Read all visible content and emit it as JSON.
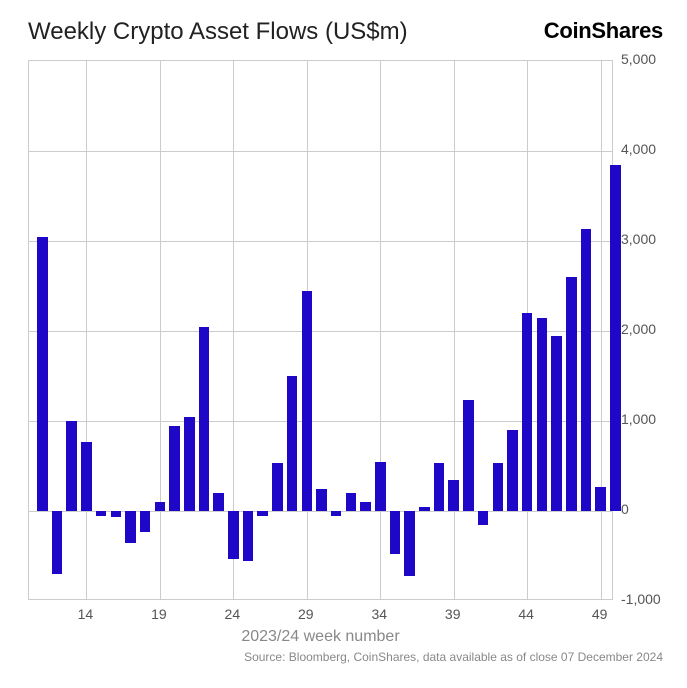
{
  "title": "Weekly Crypto Asset Flows (US$m)",
  "brand": "CoinShares",
  "xlabel": "2023/24 week number",
  "source": "Source: Bloomberg, CoinShares, data available as of close 07 December 2024",
  "chart": {
    "type": "bar",
    "bar_color": "#1f07c7",
    "grid_color": "#cccccc",
    "background_color": "#ffffff",
    "tick_label_color": "#555555",
    "xlabel_color": "#888888",
    "ylim": [
      -1000,
      5000
    ],
    "ytick_step": 1000,
    "yticks": [
      -1000,
      0,
      1000,
      2000,
      3000,
      4000,
      5000
    ],
    "ytick_labels": [
      "-1,000",
      "0",
      "1,000",
      "2,000",
      "3,000",
      "4,000",
      "5,000"
    ],
    "xticks": [
      14,
      19,
      24,
      29,
      34,
      39,
      44,
      49
    ],
    "xtick_labels": [
      "14",
      "19",
      "24",
      "29",
      "34",
      "39",
      "44",
      "49"
    ],
    "x_start": 11,
    "x_end": 49,
    "bar_width_ratio": 0.72,
    "title_fontsize": 24,
    "brand_fontsize": 22,
    "tick_fontsize": 14,
    "xlabel_fontsize": 16,
    "source_fontsize": 12,
    "values": [
      3050,
      -700,
      1000,
      770,
      -60,
      -70,
      -350,
      -230,
      100,
      950,
      1050,
      2050,
      200,
      -530,
      -560,
      -50,
      530,
      1500,
      2450,
      250,
      -50,
      200,
      100,
      550,
      -480,
      -720,
      50,
      530,
      350,
      1230,
      -160,
      530,
      900,
      2200,
      2150,
      1950,
      2600,
      3130,
      270,
      3850
    ]
  }
}
